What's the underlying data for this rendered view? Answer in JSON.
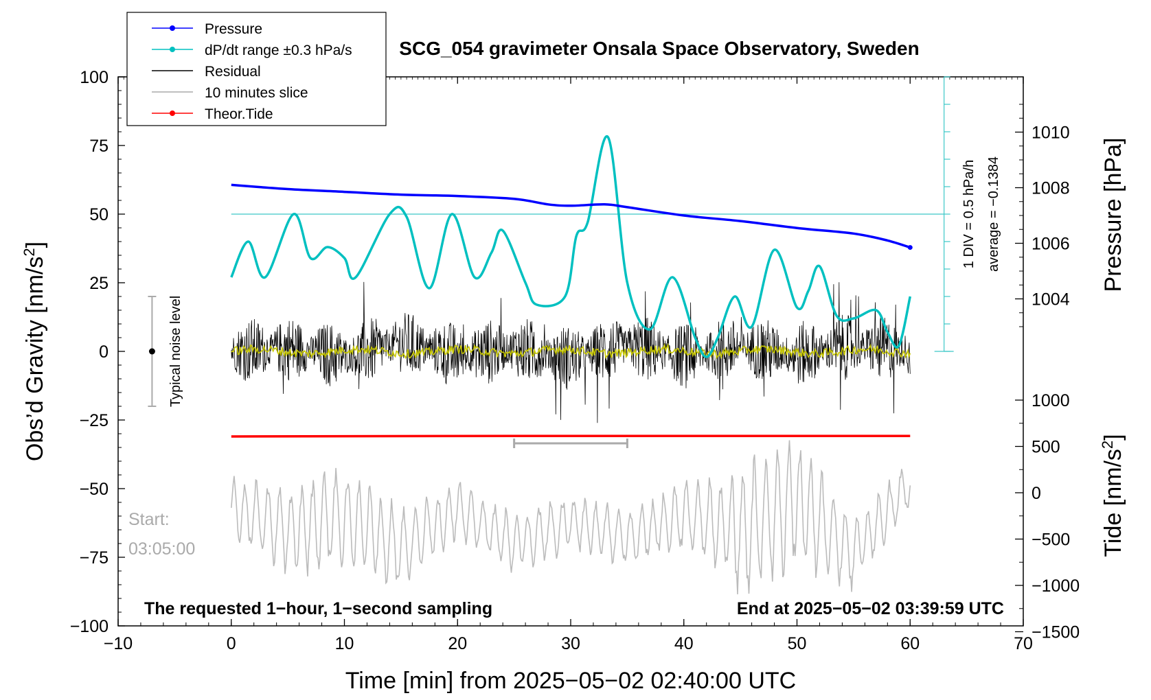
{
  "title": "SCG_054 gravimeter Onsala Space Observatory, Sweden",
  "x_axis": {
    "label": "Time [min] from 2025−05−02 02:40:00 UTC",
    "range": [
      -10,
      70
    ],
    "ticks": [
      "−10",
      "0",
      "10",
      "20",
      "30",
      "40",
      "50",
      "60",
      "70"
    ]
  },
  "y_left": {
    "label": "Obs’d Gravity [nm/s",
    "label_sup": "2",
    "label_end": "]",
    "range": [
      -100,
      100
    ],
    "ticks": [
      "100",
      "75",
      "50",
      "25",
      "0",
      "−25",
      "−50",
      "−75",
      "−100"
    ]
  },
  "y_pressure": {
    "label": "Pressure [hPa]",
    "ticks": [
      "1010",
      "1008",
      "1006",
      "1004"
    ]
  },
  "y_tide": {
    "label": "Tide [nm/s",
    "label_sup": "2",
    "label_end": "]",
    "ticks": [
      "1000",
      "500",
      "0",
      "−500",
      "−1000",
      "−1500"
    ]
  },
  "legend": [
    {
      "label": "Pressure",
      "color": "#0000ff",
      "marker": true
    },
    {
      "label": "dP/dt range ±0.3 hPa/s",
      "color": "#00c0c0",
      "marker": true
    },
    {
      "label": "Residual",
      "color": "#000000",
      "marker": false
    },
    {
      "label": "10 minutes slice",
      "color": "#aaaaaa",
      "marker": false
    },
    {
      "label": "Theor.Tide",
      "color": "#ff0000",
      "marker": true
    }
  ],
  "annotations": {
    "noise_level": "Typical noise level",
    "div_note": "1 DIV = 0.5 hPa/h",
    "average_note": "average = −0.1384",
    "start_label": "Start:",
    "start_time": "03:05:00",
    "bottom_left": "The requested 1−hour, 1−second sampling",
    "bottom_right": "End at 2025−05−02 03:39:59 UTC"
  },
  "chart_data": {
    "type": "line",
    "title": "SCG_054 gravimeter Onsala Space Observatory, Sweden",
    "xlabel": "Time [min] from 2025−05−02 02:40:00 UTC",
    "xlim": [
      -10,
      70
    ],
    "ylim": [
      -100,
      100
    ],
    "grid": false,
    "legend_position": "top-left",
    "series": [
      {
        "name": "Pressure",
        "axis": "pressure_hPa",
        "color": "#0000ff",
        "x": [
          0,
          5,
          10,
          15,
          20,
          25,
          28,
          30,
          33,
          35,
          40,
          45,
          50,
          55,
          58,
          60
        ],
        "y": [
          1008.1,
          1007.95,
          1007.85,
          1007.75,
          1007.7,
          1007.6,
          1007.4,
          1007.35,
          1007.4,
          1007.3,
          1007.0,
          1006.8,
          1006.55,
          1006.35,
          1006.1,
          1005.85
        ]
      },
      {
        "name": "dP/dt range ±0.3 hPa/s",
        "axis": "gravity_scale",
        "color": "#00c0c0",
        "x": [
          0,
          1.5,
          3,
          5.5,
          7,
          8.5,
          10,
          11,
          14,
          15.5,
          17.5,
          19.5,
          21.5,
          23,
          24,
          26,
          27,
          29.5,
          30.5,
          31.5,
          33.3,
          35,
          37,
          39,
          41,
          42,
          43,
          44.5,
          46,
          48,
          50,
          51,
          52,
          53.5,
          55,
          57,
          58,
          59,
          60
        ],
        "y": [
          27,
          40,
          27,
          50,
          34,
          38,
          34,
          27,
          50,
          49,
          23,
          50,
          27,
          36,
          44,
          25,
          17,
          20,
          42,
          47,
          78,
          25,
          8,
          27,
          5,
          -2,
          5,
          20,
          9,
          37,
          16,
          22,
          31,
          13,
          12,
          15,
          7,
          2,
          20
        ]
      },
      {
        "name": "Residual",
        "axis": "gravity_nm_s2",
        "color": "#000000",
        "x": [
          0,
          5,
          10,
          15,
          20,
          25,
          30,
          35,
          40,
          45,
          50,
          55,
          60
        ],
        "y": [
          0,
          5,
          -8,
          12,
          -6,
          4,
          -10,
          9,
          -7,
          6,
          -5,
          8,
          0
        ]
      },
      {
        "name": "10 minutes slice",
        "axis": "tide_inset",
        "color": "#aaaaaa",
        "x": [
          0,
          5,
          10,
          15,
          20,
          25,
          30,
          35,
          40,
          45,
          50,
          55,
          60
        ],
        "y": [
          -57,
          -65,
          -60,
          -72,
          -58,
          -70,
          -62,
          -68,
          -60,
          -66,
          -55,
          -74,
          -48
        ]
      },
      {
        "name": "Theor.Tide",
        "axis": "tide_nm_s2",
        "color": "#ff0000",
        "x": [
          0,
          25,
          60
        ],
        "y": [
          -31,
          -30.8,
          -30.8
        ]
      }
    ],
    "slice_marker": {
      "x": [
        25,
        35
      ],
      "y": -33.5
    },
    "noise_level": {
      "x": -7,
      "y_center": 0,
      "y_range": [
        -20,
        20
      ]
    },
    "reference_line_y": 50
  }
}
